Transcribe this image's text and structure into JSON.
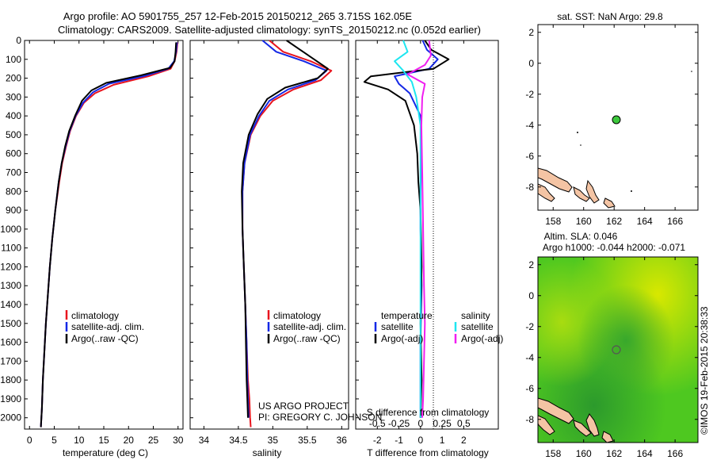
{
  "header": {
    "line1": "Argo profile: AO 5901755_257 12-Feb-2015 20150212_265 3.715S 162.05E",
    "line2": "Climatology: CARS2009. Satellite-adjusted climatology: synTS_20150212.nc (0.052d earlier)"
  },
  "footer": {
    "project": "US ARGO PROJECT",
    "pi": "PI: GREGORY C. JOHNSON",
    "stamp": "©IMOS 19-Feb-2015 20:38:33"
  },
  "colors": {
    "climatology": "#e8141e",
    "satellite": "#1428e6",
    "argo": "#000000",
    "satellite_diff_s": "#1ee6f0",
    "argo_diff_s": "#f01ef0",
    "land": "#f4c4a4",
    "sla_field": "#4ec820",
    "dot": "#3cc83c"
  },
  "chart_data": [
    {
      "type": "line",
      "id": "temperature",
      "xlabel": "temperature (deg C)",
      "ylabel": "",
      "xlim": [
        -1,
        31
      ],
      "ylim": [
        2060,
        0
      ],
      "y_reversed": true,
      "xticks": [
        0,
        5,
        10,
        15,
        20,
        25,
        30
      ],
      "yticks": [
        0,
        100,
        200,
        300,
        400,
        500,
        600,
        700,
        800,
        900,
        1000,
        1100,
        1200,
        1300,
        1400,
        1500,
        1600,
        1700,
        1800,
        1900,
        2000
      ],
      "legend": [
        "climatology",
        "satellite-adj. clim.",
        "Argo(..raw -QC)"
      ],
      "series": [
        {
          "name": "climatology",
          "color_key": "climatology",
          "x": [
            29.9,
            29.7,
            29.3,
            28.5,
            24.0,
            17.0,
            13.2,
            11.0,
            9.4,
            8.2,
            7.4,
            6.6,
            6.0,
            5.2,
            4.6,
            4.1,
            3.7,
            3.3,
            3.0,
            2.7,
            2.5,
            2.3
          ],
          "y": [
            10,
            60,
            110,
            150,
            190,
            235,
            280,
            330,
            400,
            480,
            560,
            650,
            750,
            900,
            1050,
            1200,
            1350,
            1500,
            1650,
            1800,
            1950,
            2050
          ]
        },
        {
          "name": "satellite-adj. clim.",
          "color_key": "satellite",
          "x": [
            29.8,
            29.6,
            29.2,
            28.0,
            23.0,
            16.0,
            12.8,
            10.8,
            9.3,
            8.1,
            7.3,
            6.5,
            5.9,
            5.2,
            4.6,
            4.1,
            3.7,
            3.3,
            3.0,
            2.7,
            2.5,
            2.3
          ],
          "y": [
            10,
            60,
            110,
            150,
            190,
            230,
            275,
            330,
            400,
            480,
            560,
            650,
            750,
            900,
            1050,
            1200,
            1350,
            1500,
            1650,
            1800,
            1950,
            2050
          ]
        },
        {
          "name": "Argo(..raw -QC)",
          "color_key": "argo",
          "x": [
            29.6,
            29.5,
            29.3,
            28.4,
            22.5,
            15.5,
            12.5,
            10.6,
            9.2,
            8.0,
            7.2,
            6.5,
            5.9,
            5.2,
            4.6,
            4.1,
            3.7,
            3.3,
            3.0,
            2.7,
            2.5,
            2.3
          ],
          "y": [
            10,
            60,
            110,
            145,
            185,
            225,
            265,
            320,
            400,
            480,
            560,
            650,
            750,
            900,
            1050,
            1200,
            1350,
            1500,
            1650,
            1800,
            1950,
            2050
          ]
        }
      ]
    },
    {
      "type": "line",
      "id": "salinity",
      "xlabel": "salinity",
      "ylabel": "",
      "xlim": [
        33.8,
        36.1
      ],
      "ylim": [
        2060,
        0
      ],
      "y_reversed": true,
      "xticks": [
        34,
        34.5,
        35,
        35.5,
        36
      ],
      "legend": [
        "climatology",
        "satellite-adj. clim.",
        "Argo(..raw -QC)"
      ],
      "series": [
        {
          "name": "climatology",
          "color_key": "climatology",
          "x": [
            34.95,
            35.15,
            35.55,
            35.85,
            35.7,
            35.3,
            35.0,
            34.82,
            34.68,
            34.59,
            34.56,
            34.56,
            34.58,
            34.6,
            34.62,
            34.64,
            34.66,
            34.67,
            34.68
          ],
          "y": [
            0,
            60,
            110,
            160,
            210,
            260,
            320,
            400,
            500,
            650,
            800,
            1000,
            1200,
            1400,
            1600,
            1800,
            1900,
            2000,
            2050
          ]
        },
        {
          "name": "satellite-adj. clim.",
          "color_key": "satellite",
          "x": [
            34.85,
            35.05,
            35.45,
            35.78,
            35.62,
            35.22,
            34.95,
            34.8,
            34.67,
            34.59,
            34.56,
            34.56,
            34.58,
            34.6,
            34.62,
            34.63,
            34.64,
            34.65
          ],
          "y": [
            0,
            60,
            110,
            160,
            210,
            260,
            320,
            400,
            500,
            650,
            800,
            1000,
            1200,
            1400,
            1600,
            1800,
            1900,
            2000
          ]
        },
        {
          "name": "Argo(..raw -QC)",
          "color_key": "argo",
          "x": [
            35.2,
            35.4,
            35.6,
            35.8,
            35.65,
            35.18,
            34.92,
            34.78,
            34.65,
            34.57,
            34.55,
            34.56,
            34.58,
            34.6,
            34.61,
            34.62,
            34.63,
            34.64
          ],
          "y": [
            0,
            50,
            100,
            150,
            200,
            250,
            310,
            390,
            500,
            650,
            800,
            1000,
            1200,
            1400,
            1600,
            1800,
            1900,
            2000
          ]
        }
      ]
    },
    {
      "type": "line",
      "id": "difference",
      "xlabel": "T difference from climatology",
      "x2label": "S difference from climatology",
      "xlim": [
        -3,
        3.6
      ],
      "x2lim": [
        -0.75,
        0.9
      ],
      "ylim": [
        2060,
        0
      ],
      "y_reversed": true,
      "xticks": [
        -2,
        -1,
        0,
        1,
        2
      ],
      "x2ticks": [
        -0.5,
        -0.25,
        0,
        0.25,
        0.5
      ],
      "x2ticklabels": [
        "-0.5",
        "-0.25",
        "0",
        "0.25",
        "0.5"
      ],
      "legend_left_title": "temperature",
      "legend_right_title": "salinity",
      "legend": [
        "satellite",
        "Argo(-adj)",
        "satellite",
        "Argo(-adj)"
      ],
      "series": [
        {
          "name": "satellite",
          "group": "temperature",
          "color_key": "satellite",
          "axis": "T",
          "x": [
            0.1,
            0.3,
            0.8,
            0.4,
            -1.2,
            -1.0,
            -0.5,
            0.0,
            0.05,
            0.0,
            0.0,
            0.05,
            0.0,
            0.0,
            0.0
          ],
          "y": [
            0,
            50,
            100,
            150,
            190,
            230,
            280,
            400,
            600,
            800,
            1000,
            1300,
            1600,
            1900,
            2000
          ]
        },
        {
          "name": "Argo(-adj)",
          "group": "temperature",
          "color_key": "argo",
          "axis": "T",
          "x": [
            0.2,
            0.5,
            1.3,
            0.6,
            -2.3,
            -2.6,
            -1.5,
            -0.7,
            -0.3,
            -0.15,
            -0.1,
            0.0,
            0.05,
            0.0,
            0.05,
            0.0
          ],
          "y": [
            0,
            50,
            100,
            150,
            190,
            220,
            260,
            320,
            450,
            600,
            750,
            900,
            1200,
            1500,
            1800,
            2000
          ]
        },
        {
          "name": "satellite",
          "group": "salinity",
          "color_key": "satellite_diff_s",
          "axis": "S",
          "x": [
            -0.2,
            -0.15,
            -0.3,
            -0.2,
            -0.1,
            -0.05,
            0.0,
            0.0,
            0.0,
            0.0,
            0.0,
            0.0,
            0.0
          ],
          "y": [
            0,
            60,
            110,
            160,
            220,
            300,
            450,
            700,
            1000,
            1300,
            1600,
            1800,
            2000
          ]
        },
        {
          "name": "Argo(-adj)",
          "group": "salinity",
          "color_key": "argo_diff_s",
          "axis": "S",
          "x": [
            0.1,
            0.12,
            0.05,
            -0.15,
            0.05,
            0.02,
            0.01,
            0.02,
            0.03,
            0.04,
            0.05,
            0.04,
            0.03,
            0.02
          ],
          "y": [
            0,
            80,
            130,
            180,
            230,
            300,
            450,
            700,
            1000,
            1300,
            1500,
            1700,
            1900,
            2000
          ]
        }
      ]
    },
    {
      "type": "scatter",
      "id": "sst_map",
      "title": "sat. SST: NaN  Argo: 29.8",
      "xlim": [
        157,
        167.5
      ],
      "ylim": [
        -9.5,
        2.5
      ],
      "xticks": [
        158,
        160,
        162,
        164,
        166
      ],
      "yticks": [
        2,
        0,
        -2,
        -4,
        -6,
        -8
      ],
      "points": [
        {
          "lon": 162.05,
          "lat": -3.715
        }
      ]
    },
    {
      "type": "heatmap",
      "id": "sla_map",
      "title": "Altim. SLA: 0.046",
      "subtitle": "Argo h1000: -0.044  h2000: -0.071",
      "xlim": [
        157,
        167.5
      ],
      "ylim": [
        -9.5,
        2.5
      ],
      "xticks": [
        158,
        160,
        162,
        164,
        166
      ],
      "yticks": [
        2,
        0,
        -2,
        -4,
        -6,
        -8
      ],
      "points": [
        {
          "lon": 162.05,
          "lat": -3.715
        }
      ]
    }
  ]
}
